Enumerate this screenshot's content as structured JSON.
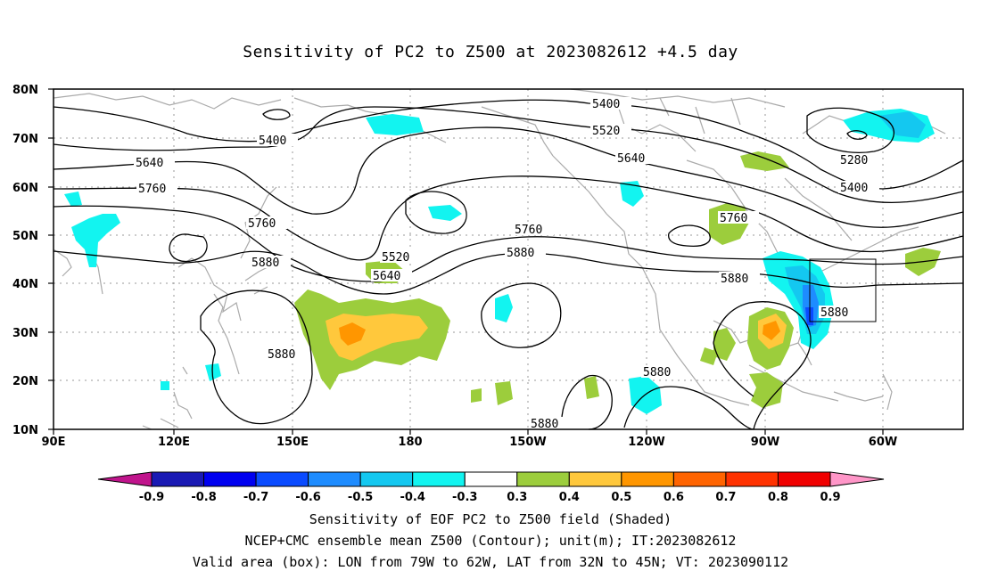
{
  "title": "Sensitivity of PC2 to Z500 at 2023082612 +4.5 day",
  "axes": {
    "lat_ticks": [
      "80N",
      "70N",
      "60N",
      "50N",
      "40N",
      "30N",
      "20N",
      "10N"
    ],
    "lon_ticks": [
      "90E",
      "120E",
      "150E",
      "180",
      "150W",
      "120W",
      "90W",
      "60W"
    ]
  },
  "contour_labels": [
    "5400",
    "5520",
    "5640",
    "5760",
    "5880",
    "5280"
  ],
  "colorbar": {
    "labels": [
      "-0.9",
      "-0.8",
      "-0.7",
      "-0.6",
      "-0.5",
      "-0.4",
      "-0.3",
      "0.3",
      "0.4",
      "0.5",
      "0.6",
      "0.7",
      "0.8",
      "0.9"
    ],
    "colors": [
      "#c0148c",
      "#1a1ab4",
      "#0000f0",
      "#0a4bff",
      "#1e8cff",
      "#14c8f0",
      "#12f4f0",
      "#ffffff",
      "#9ccd3c",
      "#ffc83c",
      "#ff9600",
      "#ff6400",
      "#ff3200",
      "#f00000",
      "#ff96c8"
    ]
  },
  "captions": {
    "line1": "Sensitivity of EOF PC2 to Z500 field (Shaded)",
    "line2": "NCEP+CMC ensemble mean Z500 (Contour); unit(m); IT:2023082612",
    "line3": "Valid area (box): LON from 79W to 62W, LAT from 32N to 45N; VT: 2023090112"
  }
}
